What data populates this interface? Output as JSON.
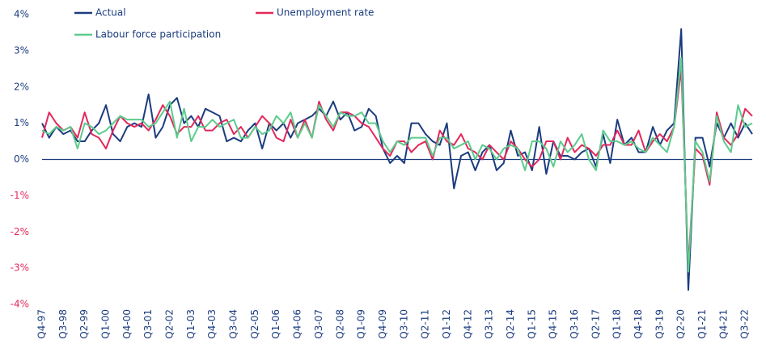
{
  "chart_data": {
    "type": "line",
    "categories": [
      "Q4-97",
      null,
      null,
      "Q3-98",
      null,
      null,
      "Q2-99",
      null,
      null,
      "Q1-00",
      null,
      null,
      "Q4-00",
      null,
      null,
      "Q3-01",
      null,
      null,
      "Q2-02",
      null,
      null,
      "Q1-03",
      null,
      null,
      "Q4-03",
      null,
      null,
      "Q3-04",
      null,
      null,
      "Q2-05",
      null,
      null,
      "Q1-06",
      null,
      null,
      "Q4-06",
      null,
      null,
      "Q3-07",
      null,
      null,
      "Q2-08",
      null,
      null,
      "Q1-09",
      null,
      null,
      "Q4-09",
      null,
      null,
      "Q3-10",
      null,
      null,
      "Q2-11",
      null,
      null,
      "Q1-12",
      null,
      null,
      "Q4-12",
      null,
      null,
      "Q3-13",
      null,
      null,
      "Q2-14",
      null,
      null,
      "Q1-15",
      null,
      null,
      "Q4-15",
      null,
      null,
      "Q3-16",
      null,
      null,
      "Q2-17",
      null,
      null,
      "Q1-18",
      null,
      null,
      "Q4-18",
      null,
      null,
      "Q3-19",
      null,
      null,
      "Q2-20",
      null,
      null,
      "Q1-21",
      null,
      null,
      "Q4-21",
      null,
      null,
      "Q3-22",
      null
    ],
    "series": [
      {
        "name": "Actual",
        "color": "#1b3c7e",
        "values": [
          1.0,
          0.6,
          0.9,
          0.7,
          0.8,
          0.5,
          0.5,
          0.8,
          1.0,
          1.5,
          0.7,
          0.5,
          0.9,
          1.0,
          0.9,
          1.8,
          0.6,
          0.9,
          1.5,
          1.7,
          1.0,
          1.2,
          0.9,
          1.4,
          1.3,
          1.2,
          0.5,
          0.6,
          0.5,
          0.8,
          1.0,
          0.3,
          1.0,
          0.8,
          1.0,
          0.6,
          1.0,
          1.1,
          1.2,
          1.4,
          1.2,
          1.6,
          1.1,
          1.3,
          0.8,
          0.9,
          1.4,
          1.2,
          0.3,
          -0.1,
          0.1,
          -0.1,
          1.0,
          1.0,
          0.7,
          0.5,
          0.4,
          1.0,
          -0.8,
          0.1,
          0.2,
          -0.3,
          0.2,
          0.4,
          -0.3,
          -0.1,
          0.8,
          0.1,
          0.2,
          -0.3,
          0.9,
          -0.4,
          0.5,
          0.1,
          0.1,
          0.0,
          0.2,
          0.3,
          -0.2,
          0.7,
          -0.1,
          1.1,
          0.4,
          0.6,
          0.2,
          0.2,
          0.9,
          0.4,
          0.8,
          1.0,
          3.6,
          -3.6,
          0.6,
          0.6,
          -0.2,
          1.0,
          0.6,
          1.0,
          0.6,
          1.0,
          0.7
        ]
      },
      {
        "name": "Unemployment rate",
        "color": "#e3285c",
        "values": [
          0.6,
          1.3,
          1.0,
          0.8,
          0.9,
          0.6,
          1.3,
          0.7,
          0.6,
          0.3,
          0.8,
          1.2,
          1.0,
          0.9,
          1.0,
          0.8,
          1.1,
          1.5,
          1.2,
          0.7,
          0.9,
          0.9,
          1.2,
          0.8,
          0.8,
          1.0,
          1.1,
          0.7,
          0.9,
          0.6,
          0.9,
          1.2,
          1.0,
          0.6,
          0.5,
          1.1,
          0.6,
          1.1,
          0.6,
          1.6,
          1.1,
          0.8,
          1.3,
          1.3,
          1.2,
          1.0,
          0.9,
          0.6,
          0.3,
          0.1,
          0.5,
          0.5,
          0.2,
          0.4,
          0.5,
          0.0,
          0.8,
          0.5,
          0.4,
          0.7,
          0.3,
          0.2,
          0.0,
          0.4,
          0.2,
          0.0,
          0.5,
          0.3,
          0.0,
          -0.2,
          0.0,
          0.5,
          0.5,
          0.0,
          0.6,
          0.2,
          0.4,
          0.3,
          0.1,
          0.4,
          0.4,
          0.8,
          0.4,
          0.4,
          0.8,
          0.2,
          0.5,
          0.7,
          0.5,
          0.9,
          2.5,
          -2.9,
          0.3,
          0.1,
          -0.7,
          1.3,
          0.6,
          0.4,
          0.7,
          1.4,
          1.2
        ]
      },
      {
        "name": "Labour force participation",
        "color": "#5ccb8c",
        "values": [
          0.8,
          0.7,
          0.9,
          0.8,
          0.9,
          0.3,
          1.0,
          0.9,
          0.7,
          0.8,
          1.0,
          1.2,
          1.1,
          1.1,
          1.1,
          0.9,
          1.0,
          1.3,
          1.6,
          0.6,
          1.4,
          0.5,
          0.9,
          0.9,
          1.1,
          0.9,
          1.0,
          1.1,
          0.6,
          0.6,
          0.9,
          0.7,
          0.8,
          1.2,
          1.0,
          1.3,
          0.6,
          1.0,
          0.6,
          1.5,
          1.2,
          0.9,
          1.3,
          1.2,
          1.2,
          1.3,
          1.0,
          1.0,
          0.5,
          0.2,
          0.5,
          0.4,
          0.6,
          0.6,
          0.6,
          0.1,
          0.6,
          0.6,
          0.3,
          0.4,
          0.5,
          0.0,
          0.4,
          0.3,
          0.0,
          0.3,
          0.4,
          0.3,
          -0.3,
          0.5,
          0.5,
          0.3,
          -0.2,
          0.5,
          0.2,
          0.4,
          0.7,
          0.0,
          -0.3,
          0.8,
          0.5,
          0.5,
          0.4,
          0.5,
          0.3,
          0.2,
          0.6,
          0.4,
          0.2,
          0.9,
          2.8,
          -3.1,
          0.5,
          0.2,
          -0.6,
          1.2,
          0.5,
          0.2,
          1.5,
          0.9,
          1.0
        ]
      }
    ],
    "ylim": [
      -4,
      4
    ],
    "yticks": [
      {
        "value": 4,
        "label": "4%"
      },
      {
        "value": 3,
        "label": "3%"
      },
      {
        "value": 2,
        "label": "2%"
      },
      {
        "value": 1,
        "label": "1%"
      },
      {
        "value": 0,
        "label": "0%"
      },
      {
        "value": -1,
        "label": "-1%"
      },
      {
        "value": -2,
        "label": "-2%"
      },
      {
        "value": -3,
        "label": "-3%"
      },
      {
        "value": -4,
        "label": "-4%"
      }
    ],
    "grid": false
  }
}
